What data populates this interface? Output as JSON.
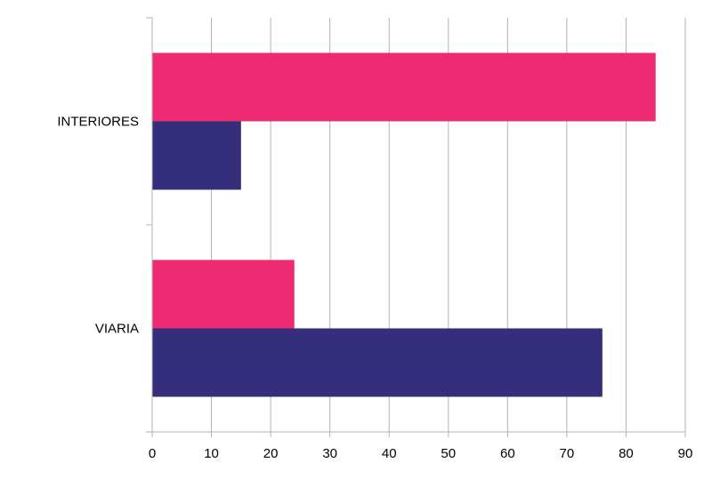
{
  "chart_data": {
    "type": "bar",
    "orientation": "horizontal",
    "title": "",
    "xlabel": "",
    "ylabel": "",
    "categories": [
      "INTERIORES",
      "VIARIA"
    ],
    "series": [
      {
        "values": [
          85,
          24
        ],
        "color": "#EE2B72"
      },
      {
        "values": [
          15,
          76
        ],
        "color": "#352E7A"
      }
    ],
    "xlim": [
      0,
      90
    ],
    "xticks": [
      0,
      10,
      20,
      30,
      40,
      50,
      60,
      70,
      80,
      90
    ],
    "grid": true,
    "legend": "none"
  }
}
